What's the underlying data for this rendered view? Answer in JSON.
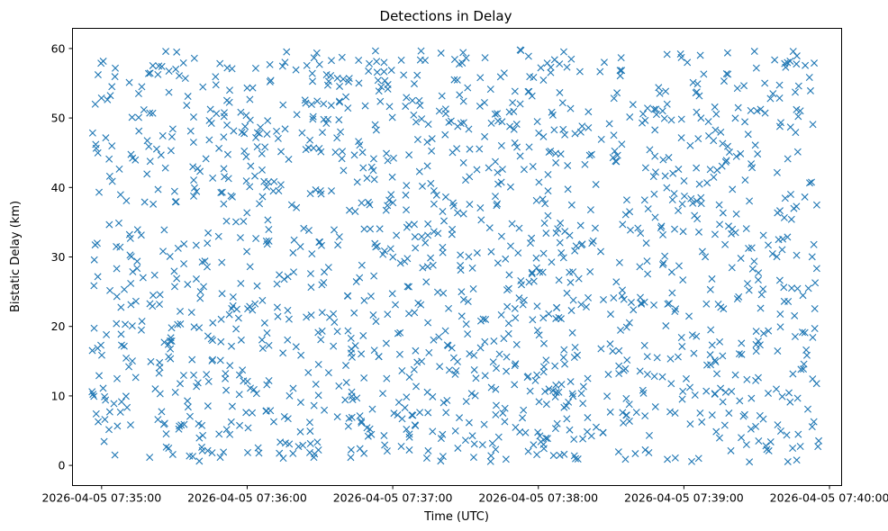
{
  "chart_data": {
    "type": "scatter",
    "title": "Detections in Delay",
    "xlabel": "Time (UTC)",
    "ylabel": "Bistatic Delay (km)",
    "x_start": "2026-04-05 07:34:56",
    "x_end": "2026-04-05 07:39:56",
    "xlim": [
      "2026-04-05 07:34:48",
      "2026-04-05 07:40:05"
    ],
    "ylim": [
      -2.9,
      62.9
    ],
    "x_ticks": [
      "2026-04-05 07:35:00",
      "2026-04-05 07:36:00",
      "2026-04-05 07:37:00",
      "2026-04-05 07:38:00",
      "2026-04-05 07:39:00",
      "2026-04-05 07:40:00"
    ],
    "y_ticks": [
      "0",
      "10",
      "20",
      "30",
      "40",
      "50",
      "60"
    ],
    "marker": "x",
    "color": "#1f77b4",
    "grid": false,
    "point_count": 1500,
    "y_range": [
      0.5,
      59.8
    ],
    "series": [
      {
        "values": "uniformly scattered detections across the full time window and delay range"
      }
    ]
  }
}
